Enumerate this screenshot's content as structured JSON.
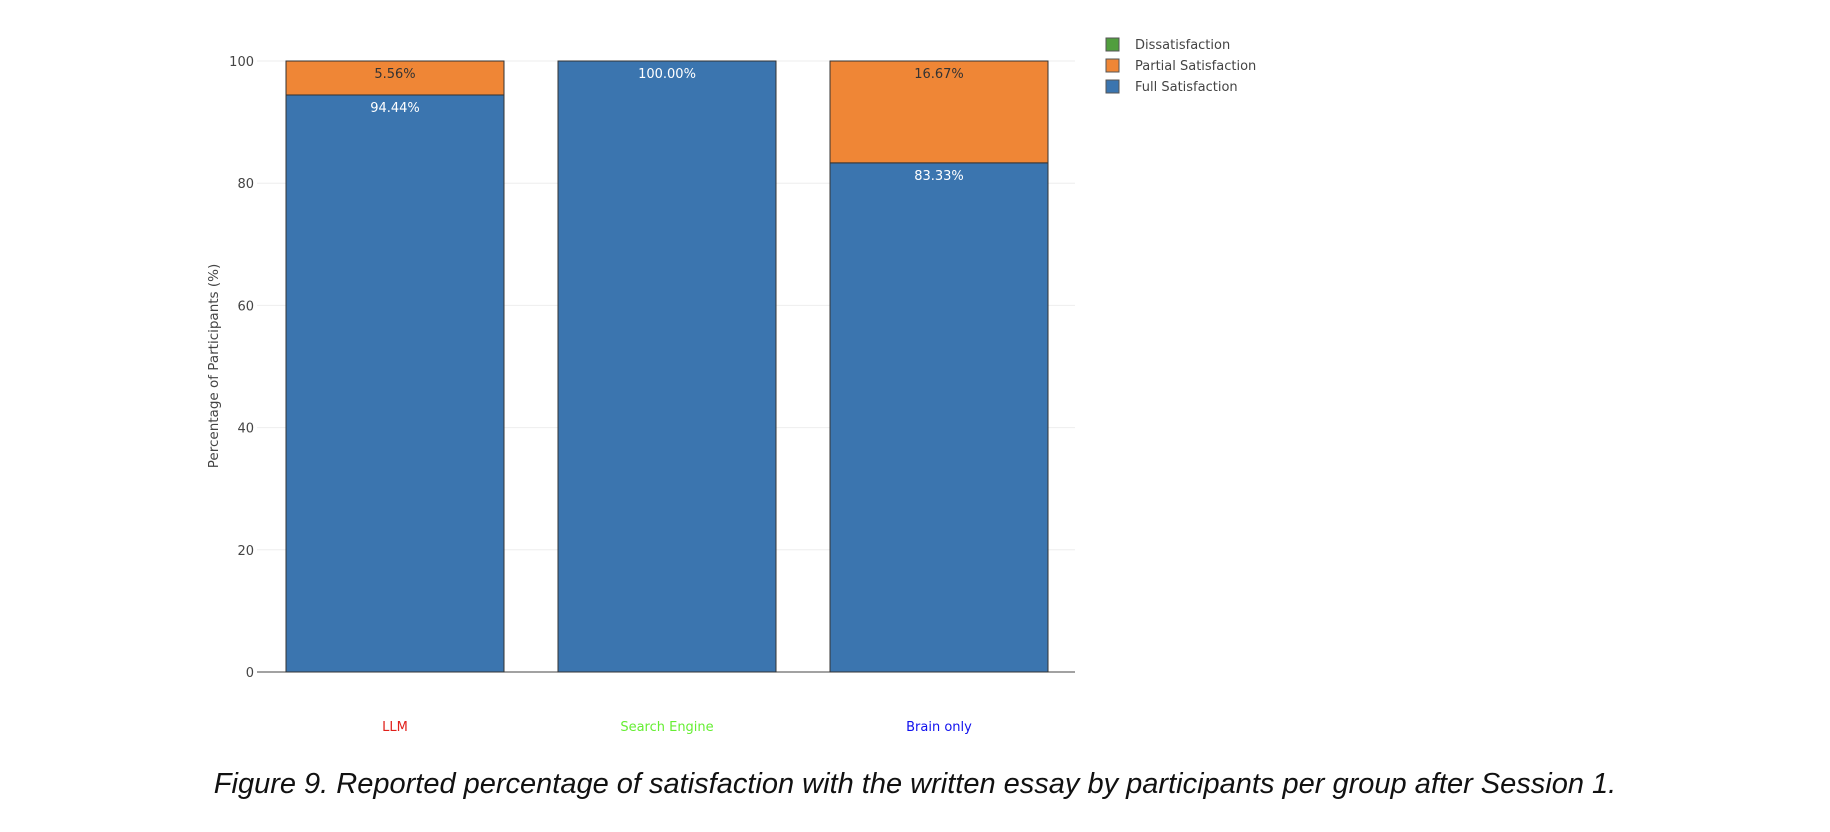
{
  "chart_data": {
    "type": "bar",
    "stacked": true,
    "categories": [
      "LLM",
      "Search Engine",
      "Brain only"
    ],
    "category_colors": [
      "#e0201b",
      "#66ee33",
      "#1010ee"
    ],
    "series": [
      {
        "name": "Full Satisfaction",
        "color": "#3b75af",
        "values": [
          94.44,
          100.0,
          83.33
        ],
        "labels": [
          "94.44%",
          "100.00%",
          "83.33%"
        ]
      },
      {
        "name": "Partial Satisfaction",
        "color": "#ef8636",
        "values": [
          5.56,
          0,
          16.67
        ],
        "labels": [
          "5.56%",
          "",
          "16.67%"
        ]
      },
      {
        "name": "Dissatisfaction",
        "color": "#519e3e",
        "values": [
          0,
          0,
          0
        ],
        "labels": [
          "",
          "",
          ""
        ]
      }
    ],
    "legend_order": [
      "Dissatisfaction",
      "Partial Satisfaction",
      "Full Satisfaction"
    ],
    "ylabel": "Percentage of Participants (%)",
    "xlabel": "",
    "ylim": [
      0,
      100
    ],
    "yticks": [
      0,
      20,
      40,
      60,
      80,
      100
    ],
    "grid": true,
    "legend_position": "top-right"
  },
  "caption": "Figure 9. Reported percentage of satisfaction with the written essay by participants per group after Session 1."
}
